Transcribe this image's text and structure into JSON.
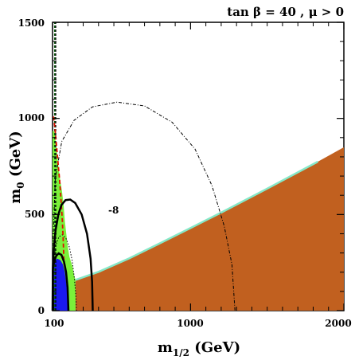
{
  "chart_data": {
    "type": "area",
    "title": "tan β = 40 ,  μ > 0",
    "xlabel_main": "m",
    "xlabel_sub": "1/2",
    "xlabel_unit": " (GeV)",
    "ylabel_main": "m",
    "ylabel_sub": "0",
    "ylabel_unit": " (GeV)",
    "xlim": [
      100,
      2000
    ],
    "ylim": [
      0,
      1500
    ],
    "x_ticks": [
      "100",
      "1000",
      "2000"
    ],
    "y_ticks": [
      "0",
      "500",
      "1000",
      "1500"
    ],
    "contour_label": "-8",
    "colors": {
      "stau_region": "#c1601f",
      "green_region": "#7af03a",
      "blue_region": "#1a1aee",
      "red_line": "#dd1100",
      "dark_green_line": "#0a5a10",
      "cosmo_band": "#86e8c8",
      "black": "#000000"
    },
    "regions": {
      "brown": [
        [
          100,
          0
        ],
        [
          2000,
          0
        ],
        [
          2000,
          850
        ],
        [
          1830,
          775
        ],
        [
          1500,
          635
        ],
        [
          1200,
          510
        ],
        [
          1000,
          430
        ],
        [
          800,
          350
        ],
        [
          600,
          272
        ],
        [
          400,
          202
        ],
        [
          300,
          172
        ],
        [
          250,
          162
        ],
        [
          240,
          0
        ]
      ],
      "green": [
        [
          100,
          0
        ],
        [
          250,
          0
        ],
        [
          250,
          160
        ],
        [
          240,
          185
        ],
        [
          230,
          230
        ],
        [
          210,
          280
        ],
        [
          198,
          340
        ],
        [
          188,
          410
        ],
        [
          180,
          470
        ],
        [
          172,
          550
        ],
        [
          162,
          620
        ],
        [
          150,
          680
        ],
        [
          140,
          740
        ],
        [
          132,
          800
        ],
        [
          124,
          860
        ],
        [
          118,
          890
        ],
        [
          112,
          930
        ],
        [
          106,
          935
        ],
        [
          100,
          935
        ]
      ],
      "blue": [
        [
          100,
          0
        ],
        [
          205,
          0
        ],
        [
          200,
          70
        ],
        [
          190,
          140
        ],
        [
          180,
          200
        ],
        [
          168,
          240
        ],
        [
          152,
          262
        ],
        [
          132,
          270
        ],
        [
          112,
          262
        ],
        [
          104,
          248
        ],
        [
          100,
          240
        ]
      ],
      "cosmo_band": [
        [
          250,
          160
        ],
        [
          400,
          202
        ],
        [
          600,
          272
        ],
        [
          800,
          350
        ],
        [
          1000,
          430
        ],
        [
          1200,
          510
        ],
        [
          1500,
          635
        ],
        [
          1830,
          775
        ]
      ]
    },
    "lines": {
      "solid_outer": [
        [
          104,
          0
        ],
        [
          102,
          220
        ],
        [
          108,
          320
        ],
        [
          120,
          420
        ],
        [
          138,
          500
        ],
        [
          158,
          550
        ],
        [
          185,
          575
        ],
        [
          215,
          578
        ],
        [
          248,
          560
        ],
        [
          290,
          500
        ],
        [
          325,
          400
        ],
        [
          348,
          270
        ],
        [
          358,
          150
        ],
        [
          362,
          0
        ]
      ],
      "solid_inner": [
        [
          100,
          0
        ],
        [
          102,
          210
        ],
        [
          110,
          255
        ],
        [
          124,
          285
        ],
        [
          140,
          298
        ],
        [
          158,
          290
        ],
        [
          175,
          255
        ],
        [
          188,
          200
        ],
        [
          198,
          120
        ],
        [
          204,
          0
        ]
      ],
      "red_dashed": [
        [
          106,
          1010
        ],
        [
          116,
          945
        ],
        [
          126,
          860
        ],
        [
          136,
          770
        ],
        [
          146,
          680
        ],
        [
          155,
          580
        ],
        [
          164,
          470
        ],
        [
          170,
          360
        ],
        [
          175,
          240
        ]
      ],
      "dotted_small": [
        [
          104,
          0
        ],
        [
          102,
          150
        ],
        [
          108,
          260
        ],
        [
          122,
          340
        ],
        [
          142,
          385
        ],
        [
          165,
          395
        ],
        [
          188,
          375
        ],
        [
          210,
          330
        ],
        [
          228,
          260
        ],
        [
          242,
          170
        ],
        [
          252,
          80
        ],
        [
          256,
          0
        ]
      ],
      "dashdot_big": [
        [
          108,
          0
        ],
        [
          104,
          380
        ],
        [
          118,
          690
        ],
        [
          160,
          880
        ],
        [
          240,
          990
        ],
        [
          360,
          1060
        ],
        [
          520,
          1085
        ],
        [
          700,
          1065
        ],
        [
          880,
          980
        ],
        [
          1030,
          840
        ],
        [
          1140,
          650
        ],
        [
          1220,
          440
        ],
        [
          1270,
          240
        ],
        [
          1290,
          0
        ]
      ],
      "vertical_black_dashed": [
        [
          120,
          0
        ],
        [
          120,
          1500
        ]
      ],
      "vertical_green_dashed": [
        [
          114,
          0
        ],
        [
          114,
          1500
        ]
      ]
    },
    "grid": false
  }
}
